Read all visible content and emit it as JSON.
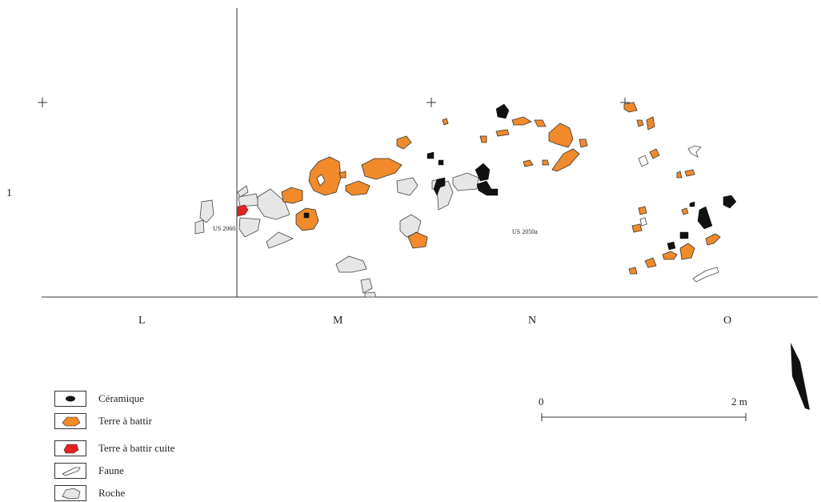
{
  "grid": {
    "row_label": "1",
    "column_labels": [
      "L",
      "M",
      "N",
      "O"
    ]
  },
  "units": {
    "us_2060": "US 2060",
    "us_2050a": "US 2050a"
  },
  "legend": [
    {
      "label": "Céramique",
      "color": "#111111"
    },
    {
      "label": "Terre à battir",
      "color": "#f08a2a"
    },
    {
      "label": "Terre à battir cuite",
      "color": "#e32222"
    },
    {
      "label": "Faune",
      "color": "#ffffff"
    },
    {
      "label": "Roche",
      "color": "#e6e6e6"
    }
  ],
  "scale_bar": {
    "start_label": "0",
    "end_label": "2 m"
  },
  "colors": {
    "ceramique": "#111111",
    "terre": "#f08a2a",
    "terre_cuite": "#e32222",
    "roche": "#e6e6e6",
    "outline": "#333333"
  },
  "north_arrow": "north-arrow-icon"
}
